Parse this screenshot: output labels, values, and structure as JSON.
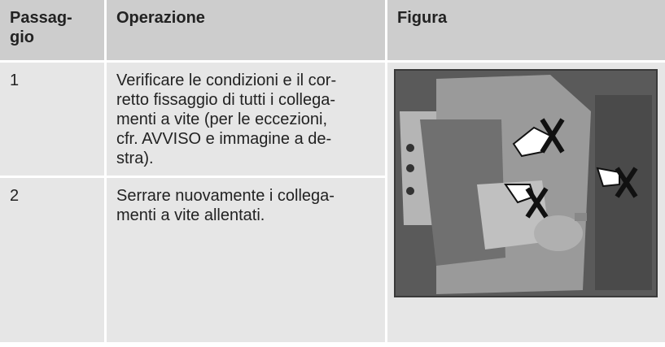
{
  "header": {
    "columns": [
      [
        "Passag-",
        "gio"
      ],
      [
        "Operazione"
      ],
      [
        "Figura"
      ]
    ]
  },
  "table": {
    "rows": [
      {
        "step": "1",
        "operation": [
          "Verificare le condizioni e il cor-",
          "retto fissaggio di tutti i collega-",
          "menti a vite (per le eccezioni,",
          "cfr. AVVISO e immagine a de-",
          "stra)."
        ]
      },
      {
        "step": "2",
        "operation": [
          "Serrare nuovamente i collega-",
          "menti a vite allentati."
        ]
      }
    ]
  }
}
